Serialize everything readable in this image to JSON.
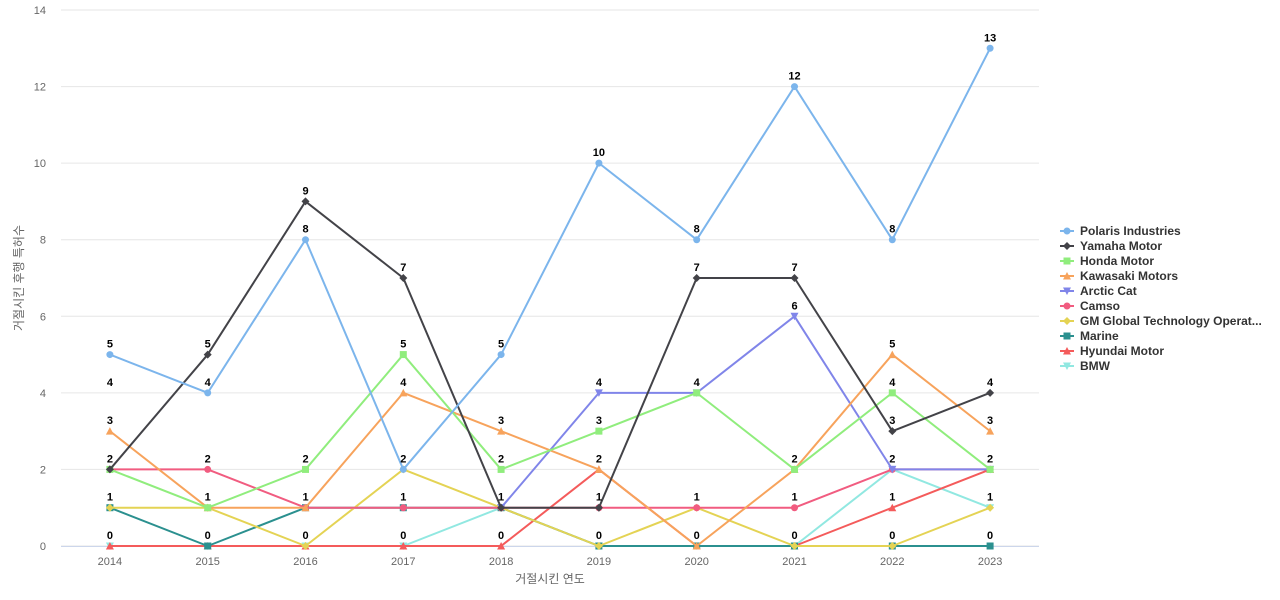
{
  "chart_data": {
    "type": "line",
    "title": "",
    "xlabel": "거절시킨 연도",
    "ylabel": "거절시킨 후행 특허수",
    "x": [
      "2014",
      "2015",
      "2016",
      "2017",
      "2018",
      "2019",
      "2020",
      "2021",
      "2022",
      "2023"
    ],
    "ylim": [
      0,
      14
    ],
    "yticks": [
      "0",
      "2",
      "4",
      "6",
      "8",
      "10",
      "12",
      "14"
    ],
    "grid": true,
    "legend_position": "right",
    "series": [
      {
        "name": "Polaris Industries",
        "color": "#7cb5ec",
        "marker": "circle",
        "values": [
          5,
          4,
          8,
          2,
          5,
          10,
          8,
          12,
          8,
          13
        ]
      },
      {
        "name": "Yamaha Motor",
        "color": "#434348",
        "marker": "diamond",
        "values": [
          2,
          5,
          9,
          7,
          1,
          1,
          7,
          7,
          3,
          4
        ]
      },
      {
        "name": "Honda Motor",
        "color": "#90ed7d",
        "marker": "square",
        "values": [
          2,
          1,
          2,
          5,
          2,
          3,
          4,
          2,
          4,
          2
        ]
      },
      {
        "name": "Kawasaki Motors",
        "color": "#f7a35c",
        "marker": "triangle",
        "values": [
          3,
          1,
          1,
          4,
          3,
          2,
          0,
          2,
          5,
          3
        ]
      },
      {
        "name": "Arctic Cat",
        "color": "#8085e9",
        "marker": "triangle-down",
        "values": [
          null,
          null,
          null,
          null,
          1,
          4,
          4,
          6,
          2,
          2
        ]
      },
      {
        "name": "Camso",
        "color": "#f15c80",
        "marker": "circle",
        "values": [
          2,
          2,
          1,
          1,
          1,
          1,
          1,
          1,
          2,
          2
        ]
      },
      {
        "name": "GM Global Technology Operat...",
        "color": "#e4d354",
        "marker": "diamond",
        "values": [
          1,
          1,
          0,
          2,
          1,
          0,
          1,
          0,
          0,
          1
        ]
      },
      {
        "name": "Marine",
        "color": "#2b908f",
        "marker": "square",
        "values": [
          1,
          0,
          1,
          1,
          1,
          0,
          0,
          0,
          0,
          0
        ]
      },
      {
        "name": "Hyundai Motor",
        "color": "#f45b5b",
        "marker": "triangle",
        "values": [
          0,
          0,
          0,
          0,
          0,
          2,
          0,
          0,
          1,
          2
        ]
      },
      {
        "name": "BMW",
        "color": "#91e8e1",
        "marker": "triangle-down",
        "values": [
          0,
          0,
          0,
          0,
          1,
          0,
          0,
          0,
          2,
          1
        ]
      }
    ],
    "top_labels": [
      [
        5,
        5,
        9,
        7,
        5,
        10,
        8,
        12,
        8,
        13
      ],
      [
        4,
        4,
        8,
        5,
        3,
        4,
        7,
        7,
        5,
        4
      ],
      [
        3,
        2,
        2,
        4,
        2,
        3,
        4,
        6,
        4,
        3
      ],
      [
        2,
        1,
        1,
        2,
        1,
        2,
        1,
        2,
        3,
        2
      ],
      [
        1,
        0,
        0,
        1,
        0,
        1,
        0,
        1,
        2,
        1
      ],
      [
        0,
        null,
        null,
        0,
        null,
        0,
        null,
        0,
        1,
        0
      ],
      [
        null,
        null,
        null,
        null,
        null,
        null,
        null,
        null,
        0,
        null
      ]
    ]
  }
}
